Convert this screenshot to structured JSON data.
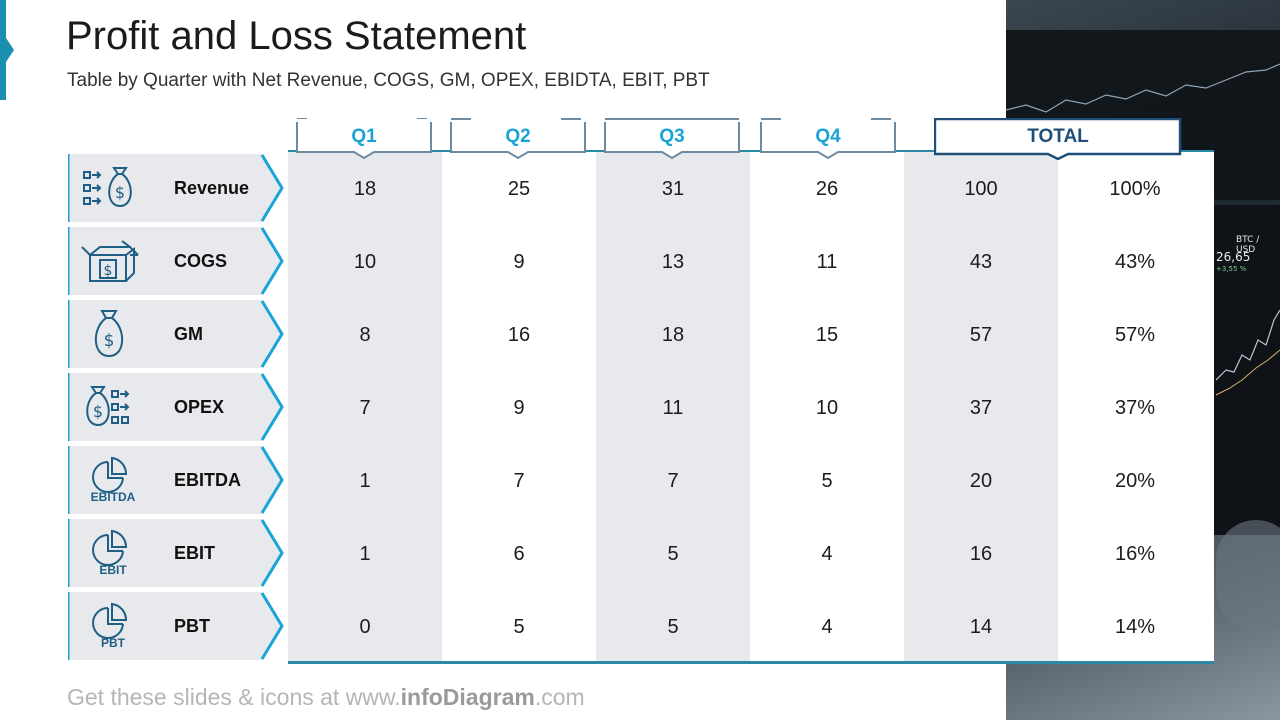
{
  "title": "Profit and Loss Statement",
  "subtitle": "Table by Quarter with Net Revenue, COGS, GM, OPEX, EBIDTA, EBIT, PBT",
  "colors": {
    "accent": "#1b8fb0",
    "header_text": "#1aa3d6",
    "total_text": "#1f4e79",
    "shade": "#e7e9ec"
  },
  "headers": [
    "Q1",
    "Q2",
    "Q3",
    "Q4",
    "TOTAL"
  ],
  "rows": [
    {
      "label": "Revenue",
      "icon": "money-bag-flow-icon",
      "q1": "18",
      "q2": "25",
      "q3": "31",
      "q4": "26",
      "total": "100",
      "pct": "100%"
    },
    {
      "label": "COGS",
      "icon": "open-box-dollar-icon",
      "q1": "10",
      "q2": "9",
      "q3": "13",
      "q4": "11",
      "total": "43",
      "pct": "43%"
    },
    {
      "label": "GM",
      "icon": "money-bag-icon",
      "q1": "8",
      "q2": "16",
      "q3": "18",
      "q4": "15",
      "total": "57",
      "pct": "57%"
    },
    {
      "label": "OPEX",
      "icon": "money-bag-out-icon",
      "q1": "7",
      "q2": "9",
      "q3": "11",
      "q4": "10",
      "total": "37",
      "pct": "37%"
    },
    {
      "label": "EBITDA",
      "icon": "pie-chart-icon",
      "icon_text": "EBITDA",
      "q1": "1",
      "q2": "7",
      "q3": "7",
      "q4": "5",
      "total": "20",
      "pct": "20%"
    },
    {
      "label": "EBIT",
      "icon": "pie-chart-icon",
      "icon_text": "EBIT",
      "q1": "1",
      "q2": "6",
      "q3": "5",
      "q4": "4",
      "total": "16",
      "pct": "16%"
    },
    {
      "label": "PBT",
      "icon": "pie-chart-icon",
      "icon_text": "PBT",
      "q1": "0",
      "q2": "5",
      "q3": "5",
      "q4": "4",
      "total": "14",
      "pct": "14%"
    }
  ],
  "footer": {
    "prefix": "Get these slides & icons at www.",
    "brand": "infoDiagram",
    "suffix": ".com"
  },
  "photo_text": {
    "price": "26,65",
    "change": "+3,55 %",
    "pair": "BTC / USD"
  }
}
